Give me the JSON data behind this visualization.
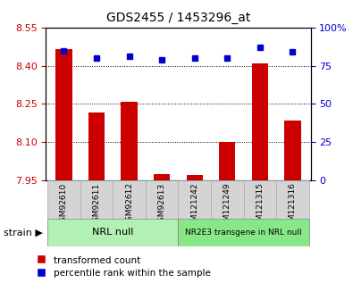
{
  "title": "GDS2455 / 1453296_at",
  "samples": [
    "GSM92610",
    "GSM92611",
    "GSM92612",
    "GSM92613",
    "GSM121242",
    "GSM121249",
    "GSM121315",
    "GSM121316"
  ],
  "red_values": [
    8.465,
    8.215,
    8.26,
    7.975,
    7.97,
    8.1,
    8.41,
    8.185
  ],
  "blue_values": [
    85,
    80,
    81,
    79,
    80,
    80,
    87,
    84
  ],
  "ylim_left": [
    7.95,
    8.55
  ],
  "ylim_right": [
    0,
    100
  ],
  "yticks_left": [
    7.95,
    8.1,
    8.25,
    8.4,
    8.55
  ],
  "yticks_right": [
    0,
    25,
    50,
    75,
    100
  ],
  "grid_values": [
    8.1,
    8.25,
    8.4
  ],
  "bar_color": "#cc0000",
  "dot_color": "#0000cc",
  "group1_label": "NRL null",
  "group2_label": "NR2E3 transgene in NRL null",
  "group1_color": "#b3f0b3",
  "group2_color": "#88e888",
  "group1_indices": [
    0,
    1,
    2,
    3
  ],
  "group2_indices": [
    4,
    5,
    6,
    7
  ],
  "strain_label": "strain",
  "legend_red": "transformed count",
  "legend_blue": "percentile rank within the sample",
  "bar_width": 0.5,
  "bar_bottom": 7.95,
  "tick_color_left": "#cc0000",
  "tick_color_right": "#0000cc",
  "cell_color": "#d4d4d4",
  "cell_edge_color": "#aaaaaa"
}
